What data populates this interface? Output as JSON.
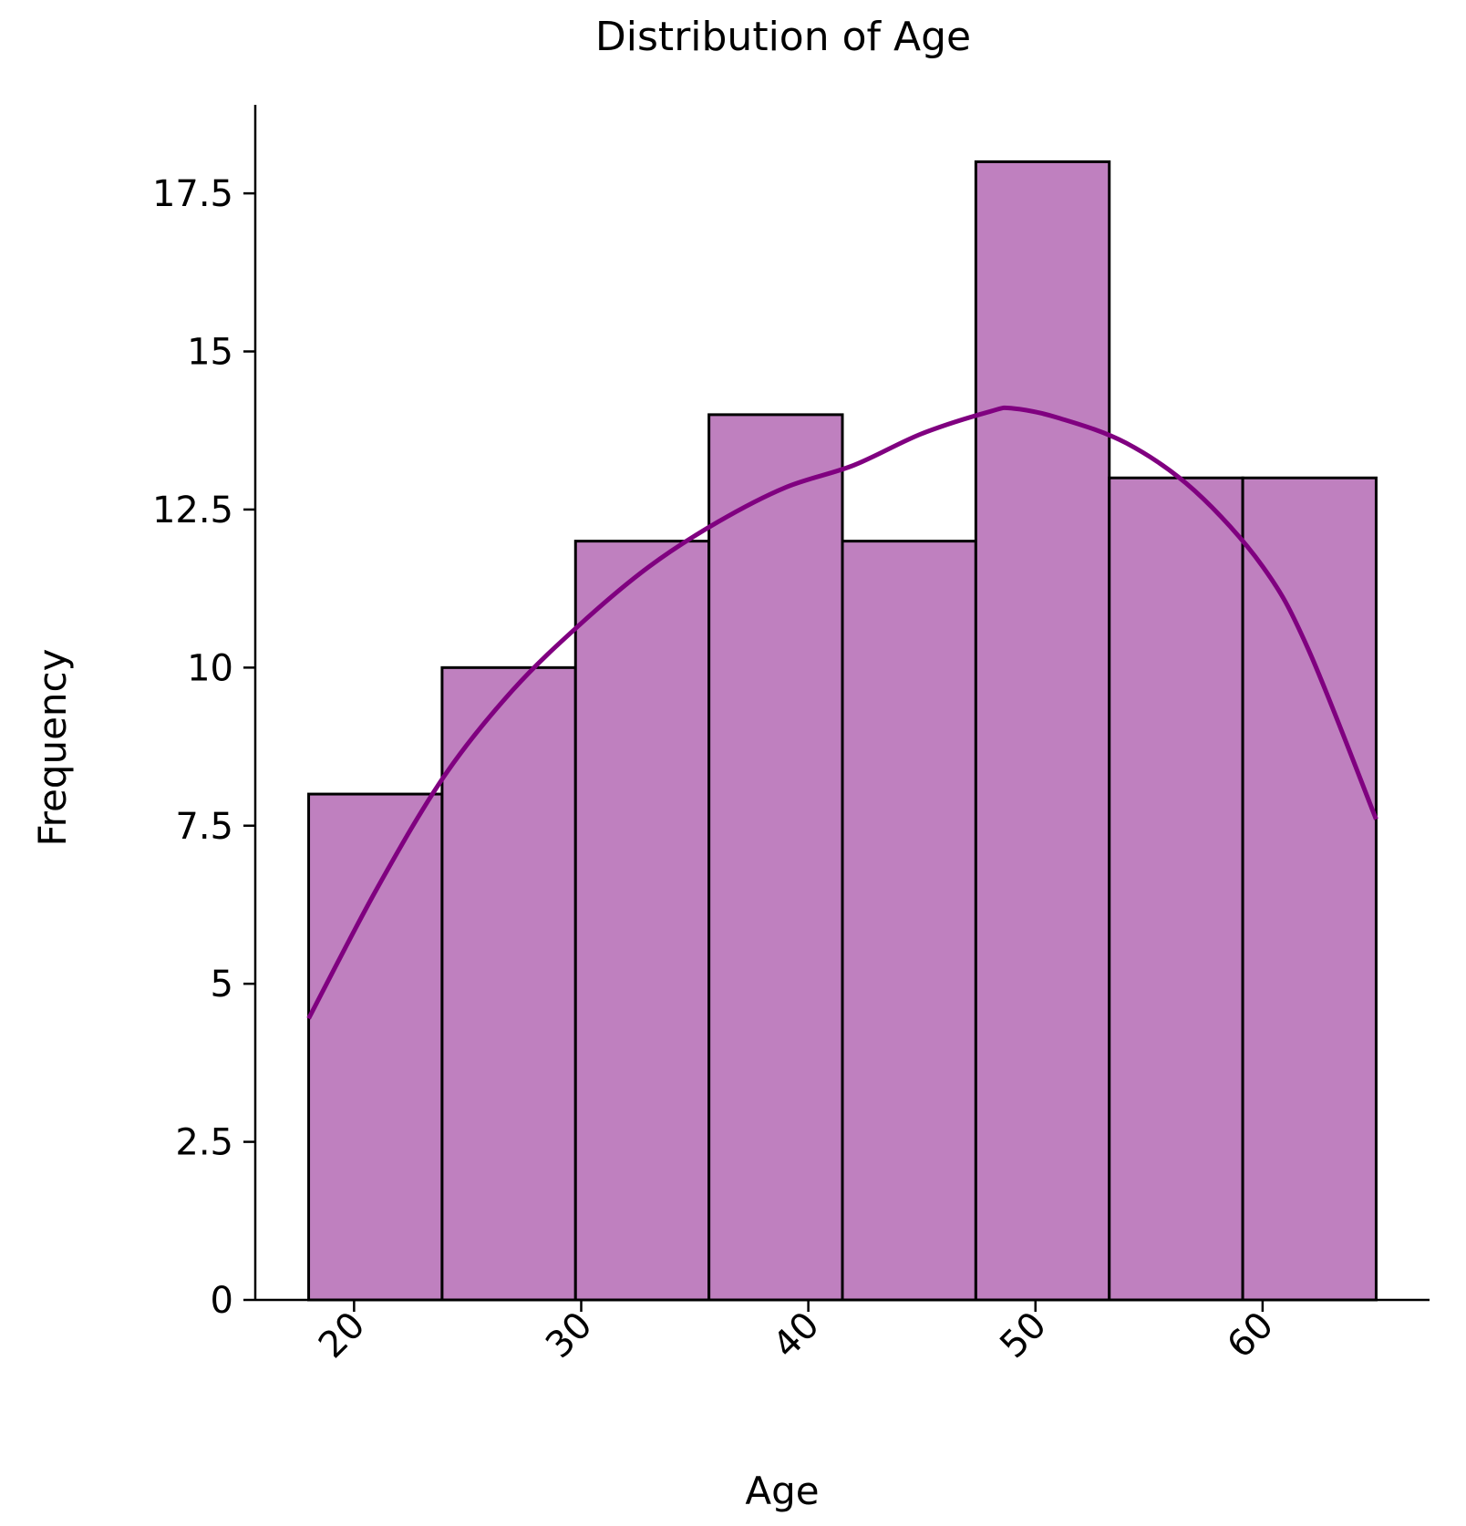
{
  "chart_data": {
    "type": "bar",
    "title": "Distribution of Age",
    "xlabel": "Age",
    "ylabel": "Frequency",
    "bins": [
      {
        "start": 18.0,
        "end": 23.875,
        "count": 8
      },
      {
        "start": 23.875,
        "end": 29.75,
        "count": 10
      },
      {
        "start": 29.75,
        "end": 35.625,
        "count": 12
      },
      {
        "start": 35.625,
        "end": 41.5,
        "count": 14
      },
      {
        "start": 41.5,
        "end": 47.375,
        "count": 12
      },
      {
        "start": 47.375,
        "end": 53.25,
        "count": 18
      },
      {
        "start": 53.25,
        "end": 59.125,
        "count": 13
      },
      {
        "start": 59.125,
        "end": 65.0,
        "count": 13
      }
    ],
    "kde": {
      "x": [
        18,
        21,
        24,
        27,
        30,
        33,
        36,
        39,
        42,
        45,
        48,
        49,
        51,
        54,
        57,
        60,
        62,
        65
      ],
      "y": [
        4.45,
        6.5,
        8.3,
        9.65,
        10.7,
        11.6,
        12.3,
        12.85,
        13.2,
        13.7,
        14.05,
        14.1,
        13.95,
        13.55,
        12.8,
        11.6,
        10.3,
        7.6
      ]
    },
    "x_ticks": [
      20,
      30,
      40,
      50,
      60
    ],
    "x_tick_labels": [
      "20",
      "30",
      "40",
      "50",
      "60"
    ],
    "y_ticks": [
      0,
      2.5,
      5,
      7.5,
      10,
      12.5,
      15,
      17.5
    ],
    "y_tick_labels": [
      "0",
      "2.5",
      "5",
      "7.5",
      "10",
      "12.5",
      "15",
      "17.5"
    ],
    "xlim": [
      15.65,
      67.35
    ],
    "ylim": [
      0,
      18.9
    ],
    "grid": false,
    "colors": {
      "bar_fill": "#bf80bf",
      "bar_edge": "#000000",
      "kde_line": "#800080",
      "axis": "#000000"
    }
  }
}
